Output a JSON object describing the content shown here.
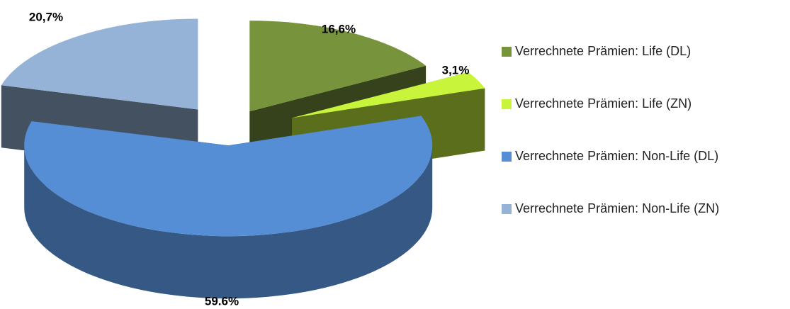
{
  "chart_data": {
    "type": "pie",
    "categories": [
      "Verrechnete Prämien: Life (DL)",
      "Verrechnete Prämien: Life (ZN)",
      "Verrechnete Prämien: Non-Life (DL)",
      "Verrechnete Prämien: Non-Life (ZN)"
    ],
    "values": [
      16.6,
      3.1,
      59.6,
      20.7
    ],
    "value_labels": [
      "16,6%",
      "3,1%",
      "59.6%",
      "20,7%"
    ],
    "colors": [
      "#77933c",
      "#c8f53c",
      "#558ed5",
      "#95b3d7"
    ]
  }
}
